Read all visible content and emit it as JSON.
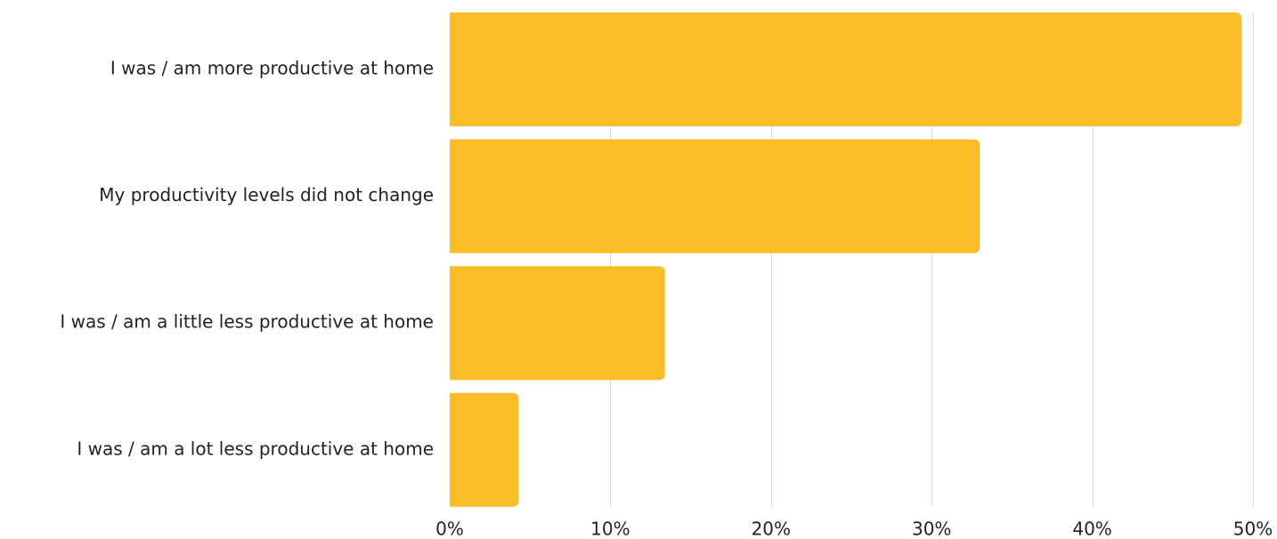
{
  "chart_data": {
    "type": "bar",
    "orientation": "horizontal",
    "categories": [
      "I was / am more productive at home",
      "My productivity levels did not change",
      "I was / am a little less productive at home",
      "I was / am a lot less productive at home"
    ],
    "values": [
      49.3,
      33.0,
      13.4,
      4.3
    ],
    "value_unit": "%",
    "xlim": [
      0,
      50
    ],
    "x_ticks": [
      0,
      10,
      20,
      30,
      40,
      50
    ],
    "x_tick_labels": [
      "0%",
      "10%",
      "20%",
      "30%",
      "40%",
      "50%"
    ],
    "title": "",
    "xlabel": "",
    "ylabel": "",
    "grid": "vertical",
    "legend": "none",
    "colors": {
      "bar": "#F9BD27",
      "grid": "#D9D9D9",
      "text": "#222222"
    }
  }
}
